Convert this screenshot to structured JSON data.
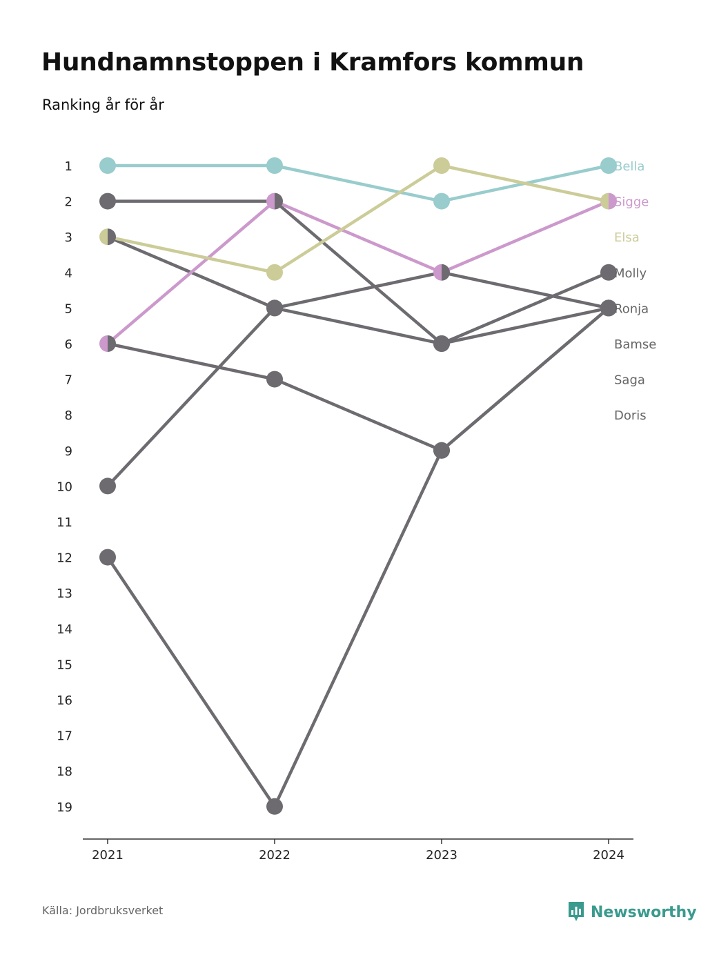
{
  "header": {
    "title": "Hundnamnstoppen i Kramfors kommun",
    "subtitle": "Ranking år för år"
  },
  "footer": {
    "source": "Källa: Jordbruksverket",
    "brand": "Newsworthy",
    "brand_icon": "bar-chart-icon",
    "brand_color": "#3a9a8e"
  },
  "chart_data": {
    "type": "line",
    "x": [
      "2021",
      "2022",
      "2023",
      "2024"
    ],
    "ylim": [
      1,
      19
    ],
    "y_reversed": true,
    "y_ticks": [
      1,
      2,
      3,
      4,
      5,
      6,
      7,
      8,
      9,
      10,
      11,
      12,
      13,
      14,
      15,
      16,
      17,
      18,
      19
    ],
    "series": [
      {
        "name": "Bella",
        "color": "#99cccc",
        "values": [
          1,
          1,
          2,
          1
        ]
      },
      {
        "name": "Sigge",
        "color": "#cc99cc",
        "values": [
          6,
          2,
          4,
          2
        ]
      },
      {
        "name": "Elsa",
        "color": "#cccc99",
        "values": [
          3,
          4,
          1,
          2
        ]
      },
      {
        "name": "Molly",
        "color": "#6d6b70",
        "values": [
          10,
          5,
          6,
          4
        ]
      },
      {
        "name": "Ronja",
        "color": "#6d6b70",
        "values": [
          2,
          2,
          6,
          5
        ]
      },
      {
        "name": "Bamse",
        "color": "#6d6b70",
        "values": [
          3,
          5,
          4,
          5
        ]
      },
      {
        "name": "Saga",
        "color": "#6d6b70",
        "values": [
          6,
          7,
          9,
          5
        ]
      },
      {
        "name": "Doris",
        "color": "#6d6b70",
        "values": [
          12,
          19,
          9,
          5
        ]
      }
    ]
  }
}
